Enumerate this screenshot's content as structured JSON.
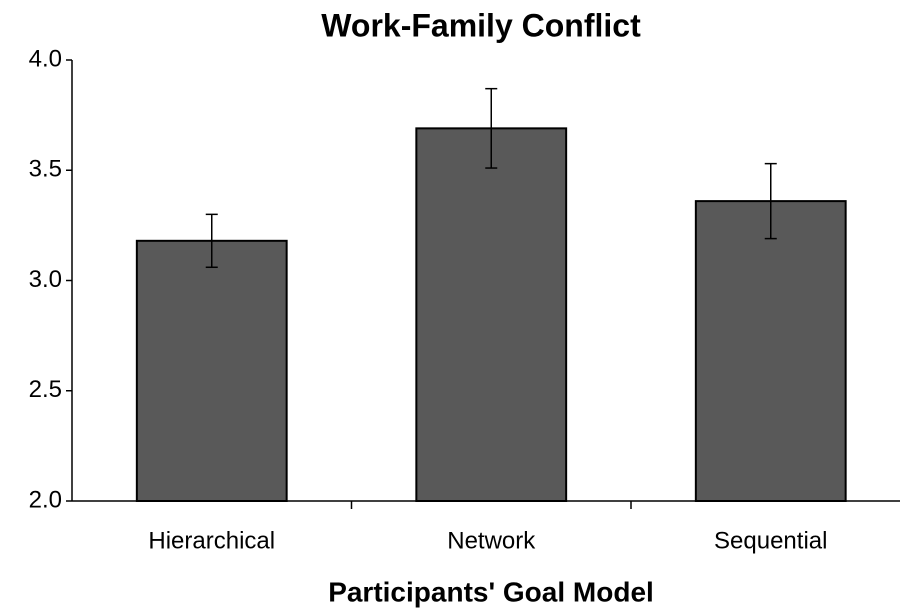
{
  "chart_data": {
    "type": "bar",
    "title": "Work-Family Conflict",
    "x_label": "Participants' Goal Model",
    "categories": [
      "Hierarchical",
      "Network",
      "Sequential"
    ],
    "values": [
      3.18,
      3.69,
      3.36
    ],
    "errors": [
      0.12,
      0.18,
      0.17
    ],
    "color": "#595959",
    "ylim": [
      2,
      4
    ],
    "yticks": [
      {
        "value": 2,
        "label": "2.0"
      },
      2.5,
      {
        "value": 3,
        "label": "3.0"
      },
      3.5,
      {
        "value": 4,
        "label": "4.0"
      }
    ],
    "grid": false
  }
}
